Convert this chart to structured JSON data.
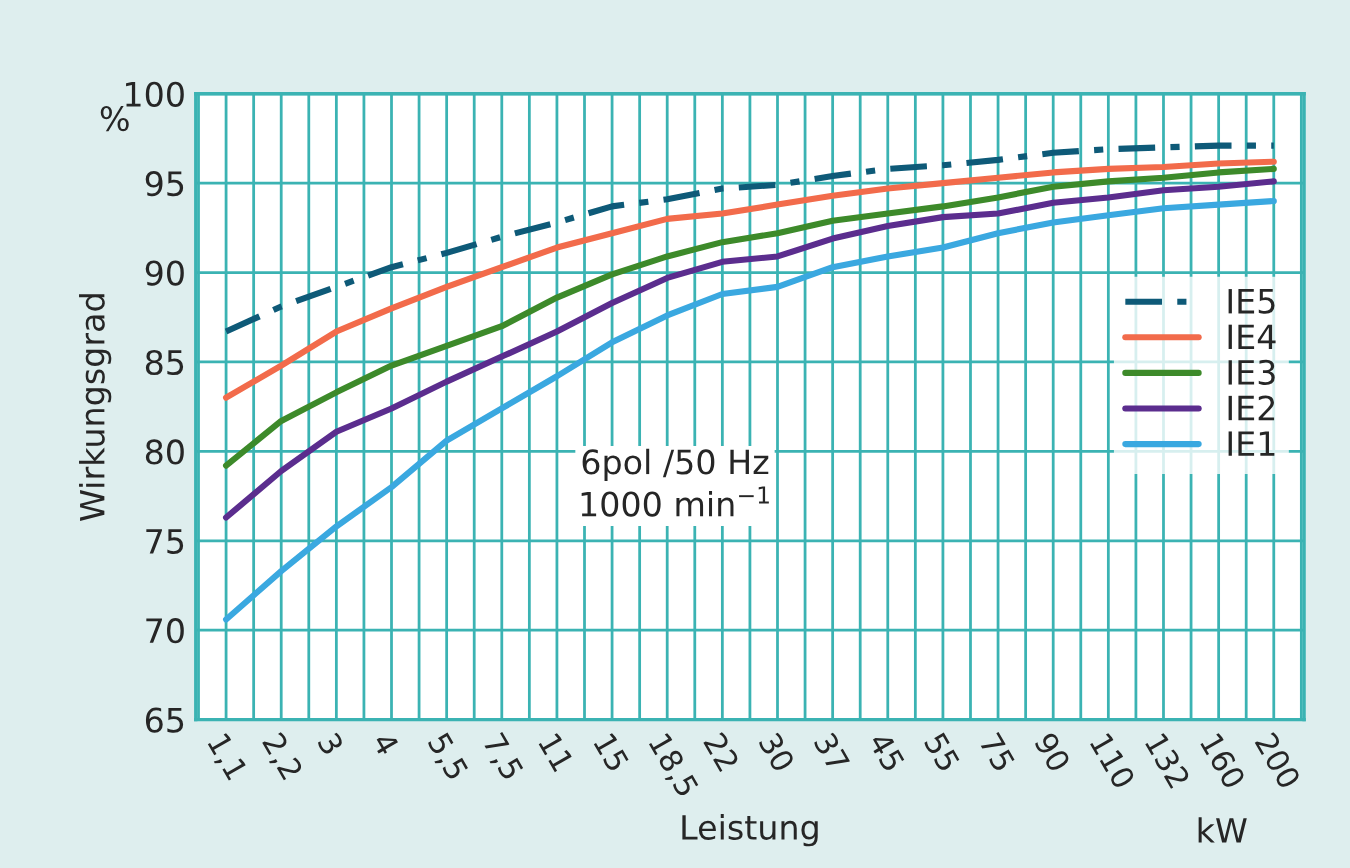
{
  "chart_data": {
    "type": "line",
    "xlabel": "Leistung",
    "ylabel": "Wirkungsgrad",
    "categories": [
      "1,1",
      "2,2",
      "3",
      "4",
      "5,5",
      "7,5",
      "11",
      "15",
      "18,5",
      "22",
      "30",
      "37",
      "45",
      "55",
      "75",
      "90",
      "110",
      "132",
      "160",
      "200"
    ],
    "series": [
      {
        "name": "IE5",
        "color": "#0e5a78",
        "line_style": "dashdot",
        "values": [
          86.7,
          88.1,
          89.2,
          90.3,
          91.1,
          92.0,
          92.8,
          93.7,
          94.1,
          94.7,
          94.9,
          95.4,
          95.8,
          96.0,
          96.3,
          96.7,
          96.9,
          97.0,
          97.1,
          97.1
        ]
      },
      {
        "name": "IE4",
        "color": "#f26b4b",
        "line_style": "solid",
        "values": [
          83.0,
          84.8,
          86.7,
          88.0,
          89.2,
          90.3,
          91.4,
          92.2,
          93.0,
          93.3,
          93.8,
          94.3,
          94.7,
          95.0,
          95.3,
          95.6,
          95.8,
          95.9,
          96.1,
          96.2
        ]
      },
      {
        "name": "IE3",
        "color": "#3d8a2a",
        "line_style": "solid",
        "values": [
          79.2,
          81.7,
          83.3,
          84.8,
          85.9,
          87.0,
          88.6,
          89.9,
          90.9,
          91.7,
          92.2,
          92.9,
          93.3,
          93.7,
          94.2,
          94.8,
          95.1,
          95.3,
          95.6,
          95.8
        ]
      },
      {
        "name": "IE2",
        "color": "#5b2d8e",
        "line_style": "solid",
        "values": [
          76.3,
          78.9,
          81.1,
          82.4,
          83.9,
          85.3,
          86.7,
          88.3,
          89.7,
          90.6,
          90.9,
          91.9,
          92.6,
          93.1,
          93.3,
          93.9,
          94.2,
          94.6,
          94.8,
          95.1
        ]
      },
      {
        "name": "IE1",
        "color": "#3aa8e0",
        "line_style": "solid",
        "values": [
          70.6,
          73.3,
          75.8,
          78.0,
          80.6,
          82.4,
          84.2,
          86.1,
          87.6,
          88.8,
          89.2,
          90.3,
          90.9,
          91.4,
          92.2,
          92.8,
          93.2,
          93.6,
          93.8,
          94.0
        ]
      }
    ],
    "ylim": [
      65,
      100
    ],
    "yticks": [
      65,
      70,
      75,
      80,
      85,
      90,
      95,
      100
    ],
    "grid": true,
    "legend": "right",
    "marker": "none",
    "annotations": [
      "%",
      "kW",
      {
        "text": "6pol /50 Hz\n1000 min$^{−1}$"
      }
    ]
  }
}
